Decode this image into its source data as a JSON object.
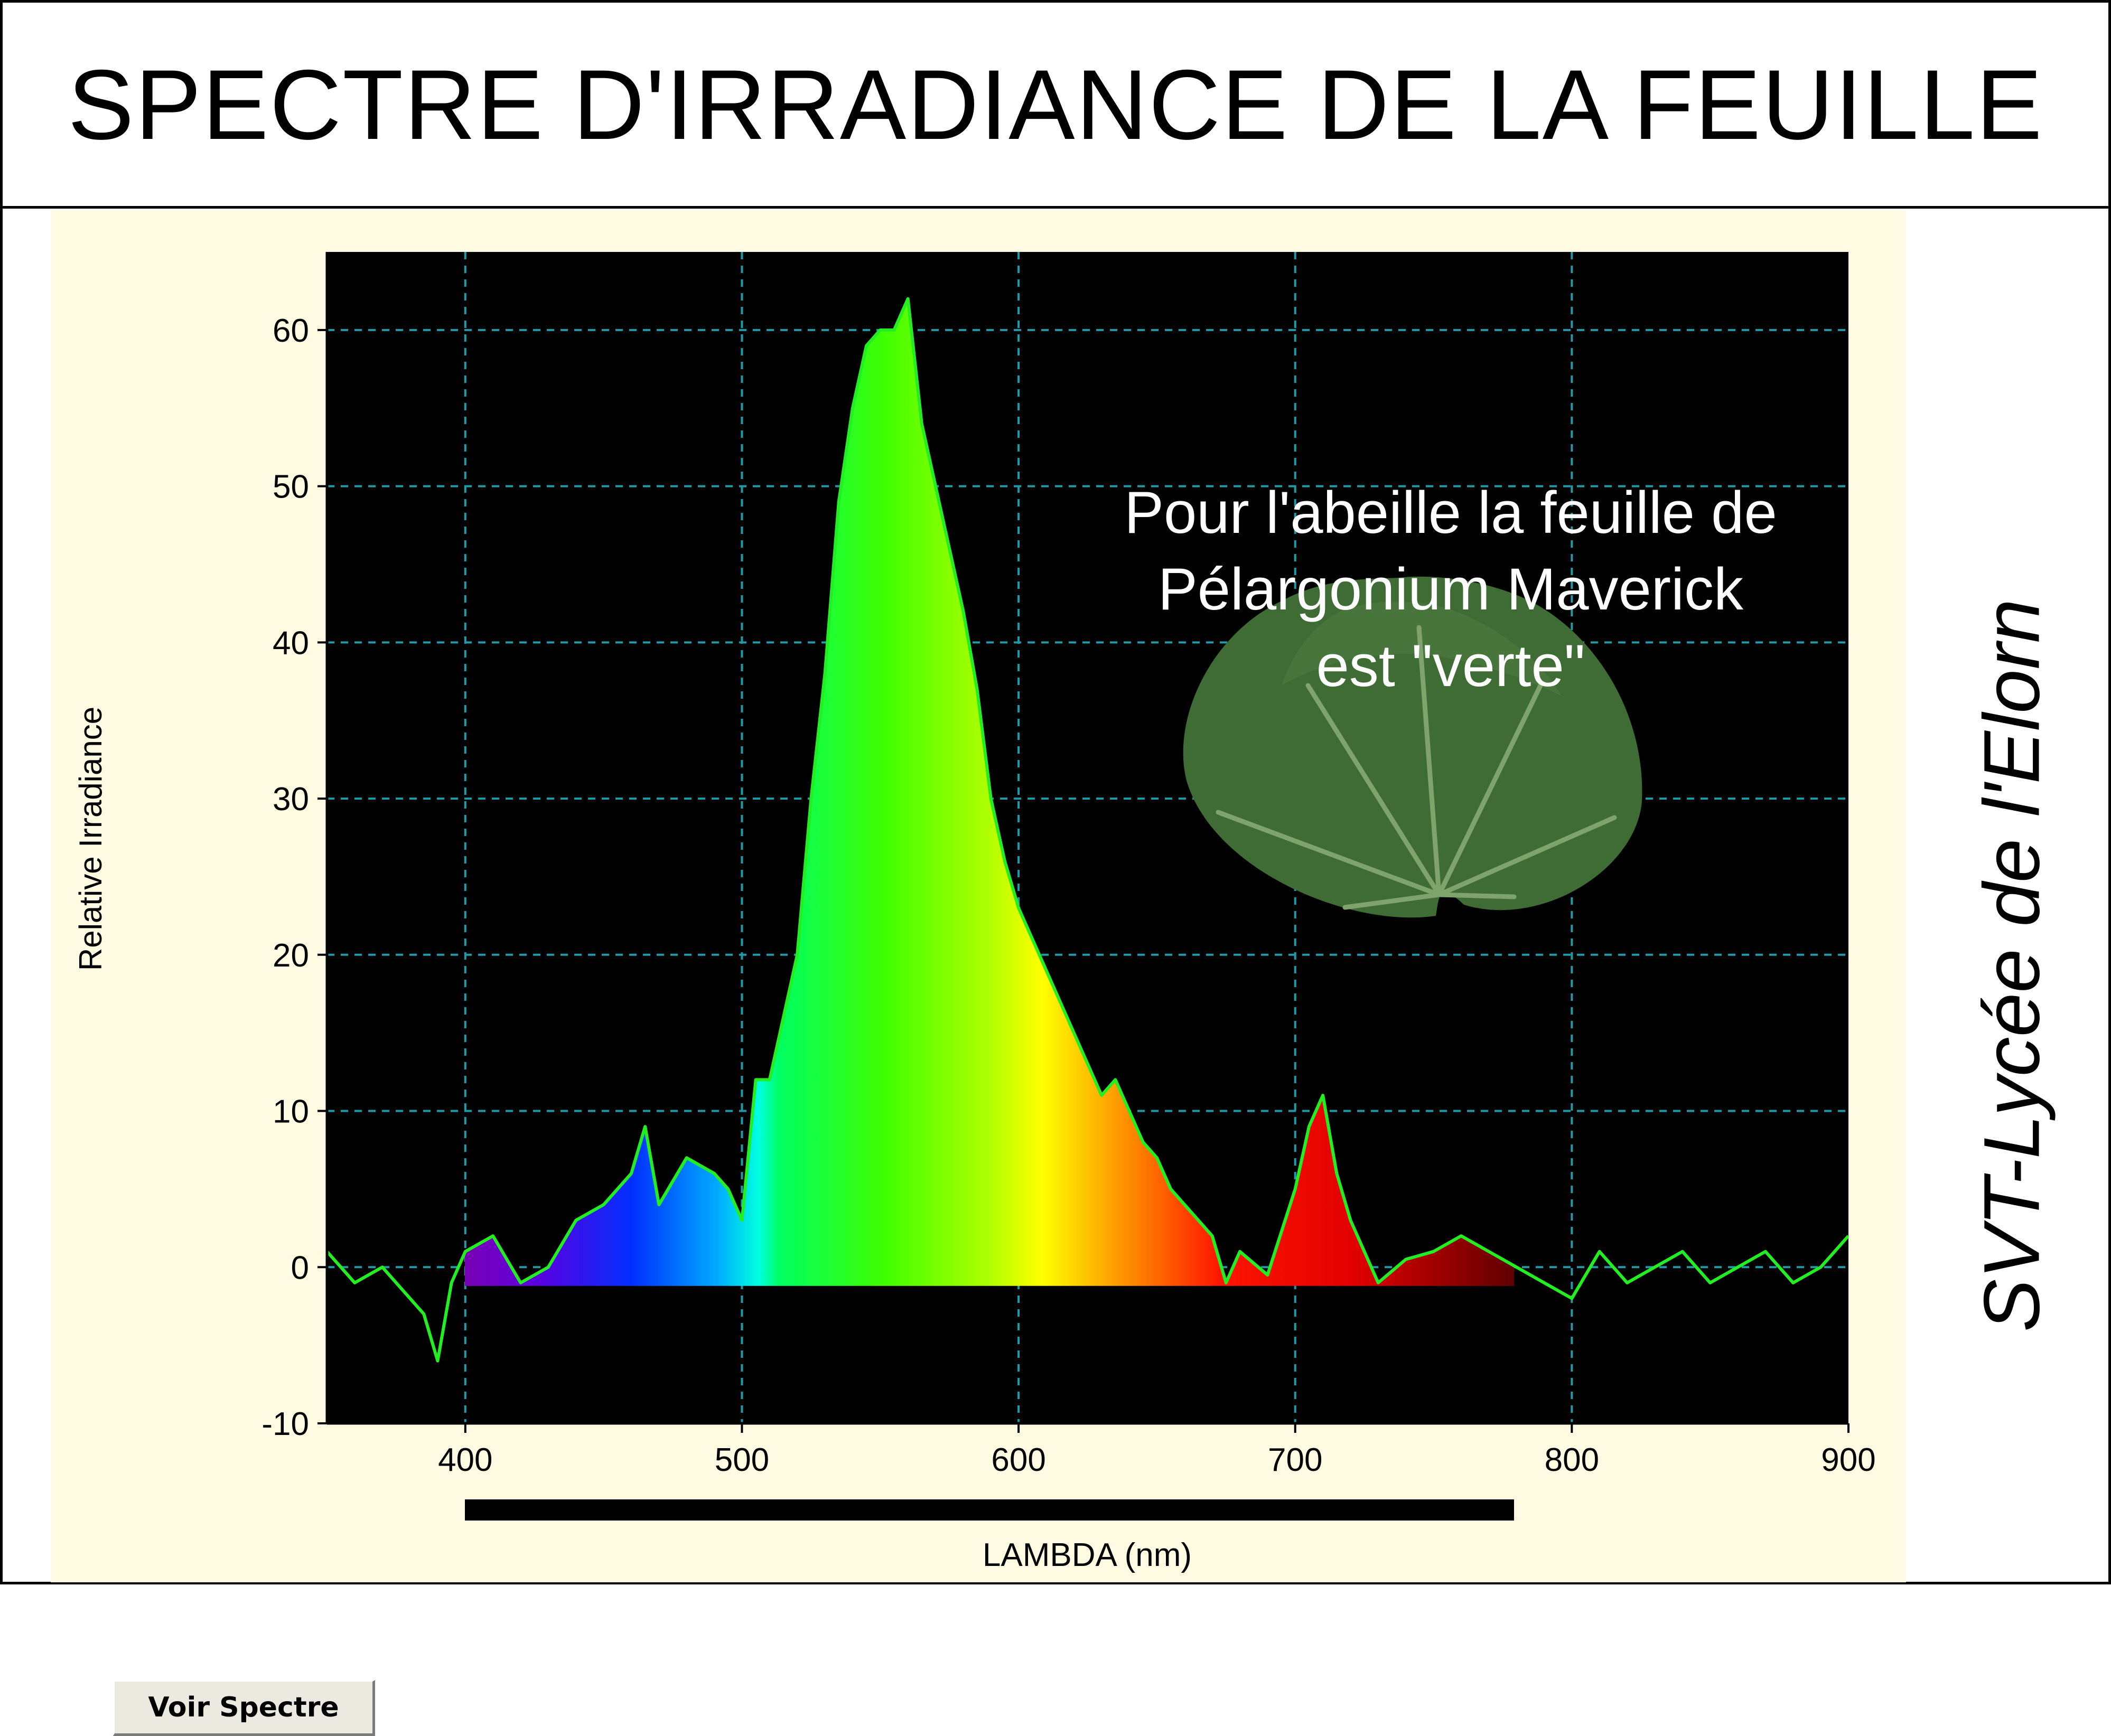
{
  "title": "SPECTRE D'IRRADIANCE DE LA FEUILLE",
  "credit": "SVT-Lycée de l'Elorn",
  "button": {
    "label": "Voir Spectre"
  },
  "annotation": [
    "Pour l'abeille la feuille de",
    "Pélargonium Maverick",
    "est \"verte\""
  ],
  "colors": {
    "plot_bg": "#000000",
    "panel_bg": "#fffbe3",
    "grid": "#1e9aa8",
    "curve": "#22ee22",
    "leaf": "#3f6b35"
  },
  "icons": {
    "leaf": "pelargonium-leaf-photo"
  },
  "chart_data": {
    "type": "area",
    "xlabel": "LAMBDA (nm)",
    "ylabel": "Relative Irradiance",
    "xlim": [
      350,
      900
    ],
    "ylim": [
      -10,
      65
    ],
    "xticks": [
      400,
      500,
      600,
      700,
      800,
      900
    ],
    "yticks": [
      -10,
      0,
      10,
      20,
      30,
      40,
      50,
      60
    ],
    "grid": true,
    "visible_band_nm": [
      400,
      780
    ],
    "series": [
      {
        "x": [
          350,
          360,
          370,
          380,
          385,
          390,
          395,
          400,
          410,
          420,
          430,
          440,
          450,
          460,
          465,
          470,
          480,
          490,
          495,
          500,
          505,
          510,
          515,
          520,
          525,
          530,
          535,
          540,
          545,
          550,
          555,
          560,
          565,
          570,
          575,
          580,
          585,
          590,
          595,
          600,
          605,
          610,
          615,
          620,
          625,
          630,
          635,
          640,
          645,
          650,
          655,
          660,
          665,
          670,
          675,
          680,
          690,
          700,
          705,
          710,
          715,
          720,
          730,
          740,
          750,
          760,
          770,
          780,
          790,
          800,
          810,
          820,
          830,
          840,
          850,
          860,
          870,
          880,
          890,
          900
        ],
        "y": [
          1,
          -1,
          0,
          -2,
          -3,
          -6,
          -1,
          1,
          2,
          -1,
          0,
          3,
          4,
          6,
          9,
          4,
          7,
          6,
          5,
          3,
          12,
          12,
          16,
          20,
          30,
          38,
          49,
          55,
          59,
          60,
          60,
          62,
          54,
          50,
          46,
          42,
          37,
          30,
          26,
          23,
          21,
          19,
          17,
          15,
          13,
          11,
          12,
          10,
          8,
          7,
          5,
          4,
          3,
          2,
          -1,
          1,
          -0.5,
          5,
          9,
          11,
          6,
          3,
          -1,
          0.5,
          1,
          2,
          1,
          0,
          -1,
          -2,
          1,
          -1,
          0,
          1,
          -1,
          0,
          1,
          -1,
          0,
          2
        ]
      }
    ]
  }
}
